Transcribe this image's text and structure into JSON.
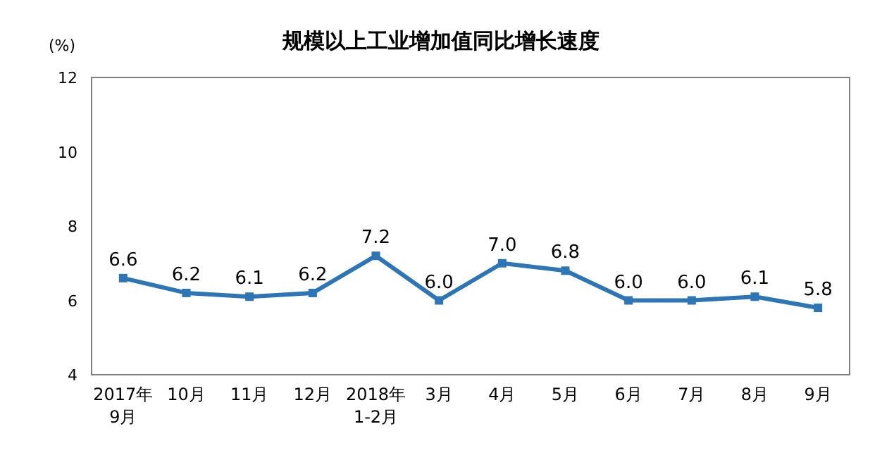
{
  "chart_data": {
    "type": "line",
    "title": "规模以上工业增加值同比增长速度",
    "ylabel": "(%)",
    "categories": [
      "2017年\n9月",
      "10月",
      "11月",
      "12月",
      "2018年\n1-2月",
      "3月",
      "4月",
      "5月",
      "6月",
      "7月",
      "8月",
      "9月"
    ],
    "series": [
      {
        "color": "#2e75b6",
        "values": [
          6.6,
          6.2,
          6.1,
          6.2,
          7.2,
          6.0,
          7.0,
          6.8,
          6.0,
          6.0,
          6.1,
          5.8
        ],
        "value_labels": [
          "6.6",
          "6.2",
          "6.1",
          "6.2",
          "7.2",
          "6.0",
          "7.0",
          "6.8",
          "6.0",
          "6.0",
          "6.1",
          "5.8"
        ]
      }
    ],
    "ylim": [
      4,
      12
    ],
    "yticks": [
      4,
      6,
      8,
      10,
      12
    ],
    "marker": "square",
    "grid": false
  }
}
